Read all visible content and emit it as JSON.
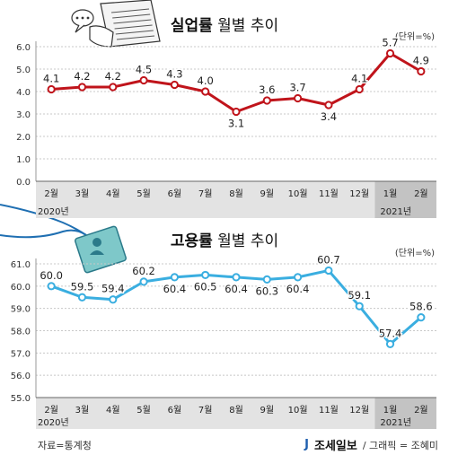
{
  "charts": {
    "unemployment": {
      "title_bold": "실업률",
      "title_rest": " 월별 추이",
      "unit": "(단위=%)",
      "color": "#c0141b"
    },
    "employment": {
      "title_bold": "고용률",
      "title_rest": " 월별 추이",
      "unit": "(단위=%)",
      "color": "#3aaee0"
    }
  },
  "year_labels": [
    "2020년",
    "2021년"
  ],
  "footer": {
    "source": "자료=통계청",
    "brand": "조세일보",
    "credit": "/ 그래픽 = 조혜미"
  },
  "chart_data": [
    {
      "type": "line",
      "title": "실업률 월별 추이",
      "unit": "(단위=%)",
      "categories": [
        "2월",
        "3월",
        "4월",
        "5월",
        "6월",
        "7월",
        "8월",
        "9월",
        "10월",
        "11월",
        "12월",
        "1월",
        "2월"
      ],
      "values": [
        4.1,
        4.2,
        4.2,
        4.5,
        4.3,
        4.0,
        3.1,
        3.6,
        3.7,
        3.4,
        4.1,
        5.7,
        4.9
      ],
      "ylim": [
        0.0,
        6.0
      ],
      "yticks": [
        "0.0",
        "1.0",
        "2.0",
        "3.0",
        "4.0",
        "5.0",
        "6.0"
      ],
      "grid": true
    },
    {
      "type": "line",
      "title": "고용률 월별 추이",
      "unit": "(단위=%)",
      "categories": [
        "2월",
        "3월",
        "4월",
        "5월",
        "6월",
        "7월",
        "8월",
        "9월",
        "10월",
        "11월",
        "12월",
        "1월",
        "2월"
      ],
      "values": [
        60.0,
        59.5,
        59.4,
        60.2,
        60.4,
        60.5,
        60.4,
        60.3,
        60.4,
        60.7,
        59.1,
        57.4,
        58.6
      ],
      "ylim": [
        55.0,
        61.0
      ],
      "yticks": [
        "55.0",
        "56.0",
        "57.0",
        "58.0",
        "59.0",
        "60.0",
        "61.0"
      ],
      "grid": true
    }
  ]
}
